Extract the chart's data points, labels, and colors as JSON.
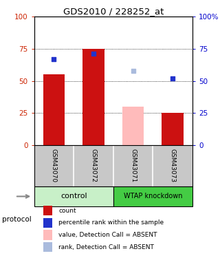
{
  "title": "GDS2010 / 228252_at",
  "samples": [
    "GSM43070",
    "GSM43072",
    "GSM43071",
    "GSM43073"
  ],
  "bar_values": [
    55,
    75,
    30,
    25
  ],
  "bar_colors": [
    "#cc1111",
    "#cc1111",
    "#ffbbbb",
    "#cc1111"
  ],
  "dot_values": [
    67,
    71,
    58,
    52
  ],
  "dot_colors": [
    "#2233cc",
    "#2233cc",
    "#aabbdd",
    "#2233cc"
  ],
  "yticks": [
    0,
    25,
    50,
    75,
    100
  ],
  "ytick_labels_left": [
    "0",
    "25",
    "50",
    "75",
    "100"
  ],
  "ytick_labels_right": [
    "0",
    "25",
    "50",
    "75",
    "100%"
  ],
  "left_tick_color": "#cc2200",
  "right_tick_color": "#0000cc",
  "background_color": "#ffffff",
  "sample_bg_color": "#c8c8c8",
  "ctrl_color": "#c8f0c8",
  "wtap_color": "#44cc44",
  "legend_items": [
    {
      "color": "#cc1111",
      "label": "count"
    },
    {
      "color": "#2233cc",
      "label": "percentile rank within the sample"
    },
    {
      "color": "#ffbbbb",
      "label": "value, Detection Call = ABSENT"
    },
    {
      "color": "#aabbdd",
      "label": "rank, Detection Call = ABSENT"
    }
  ],
  "protocol_label": "protocol"
}
